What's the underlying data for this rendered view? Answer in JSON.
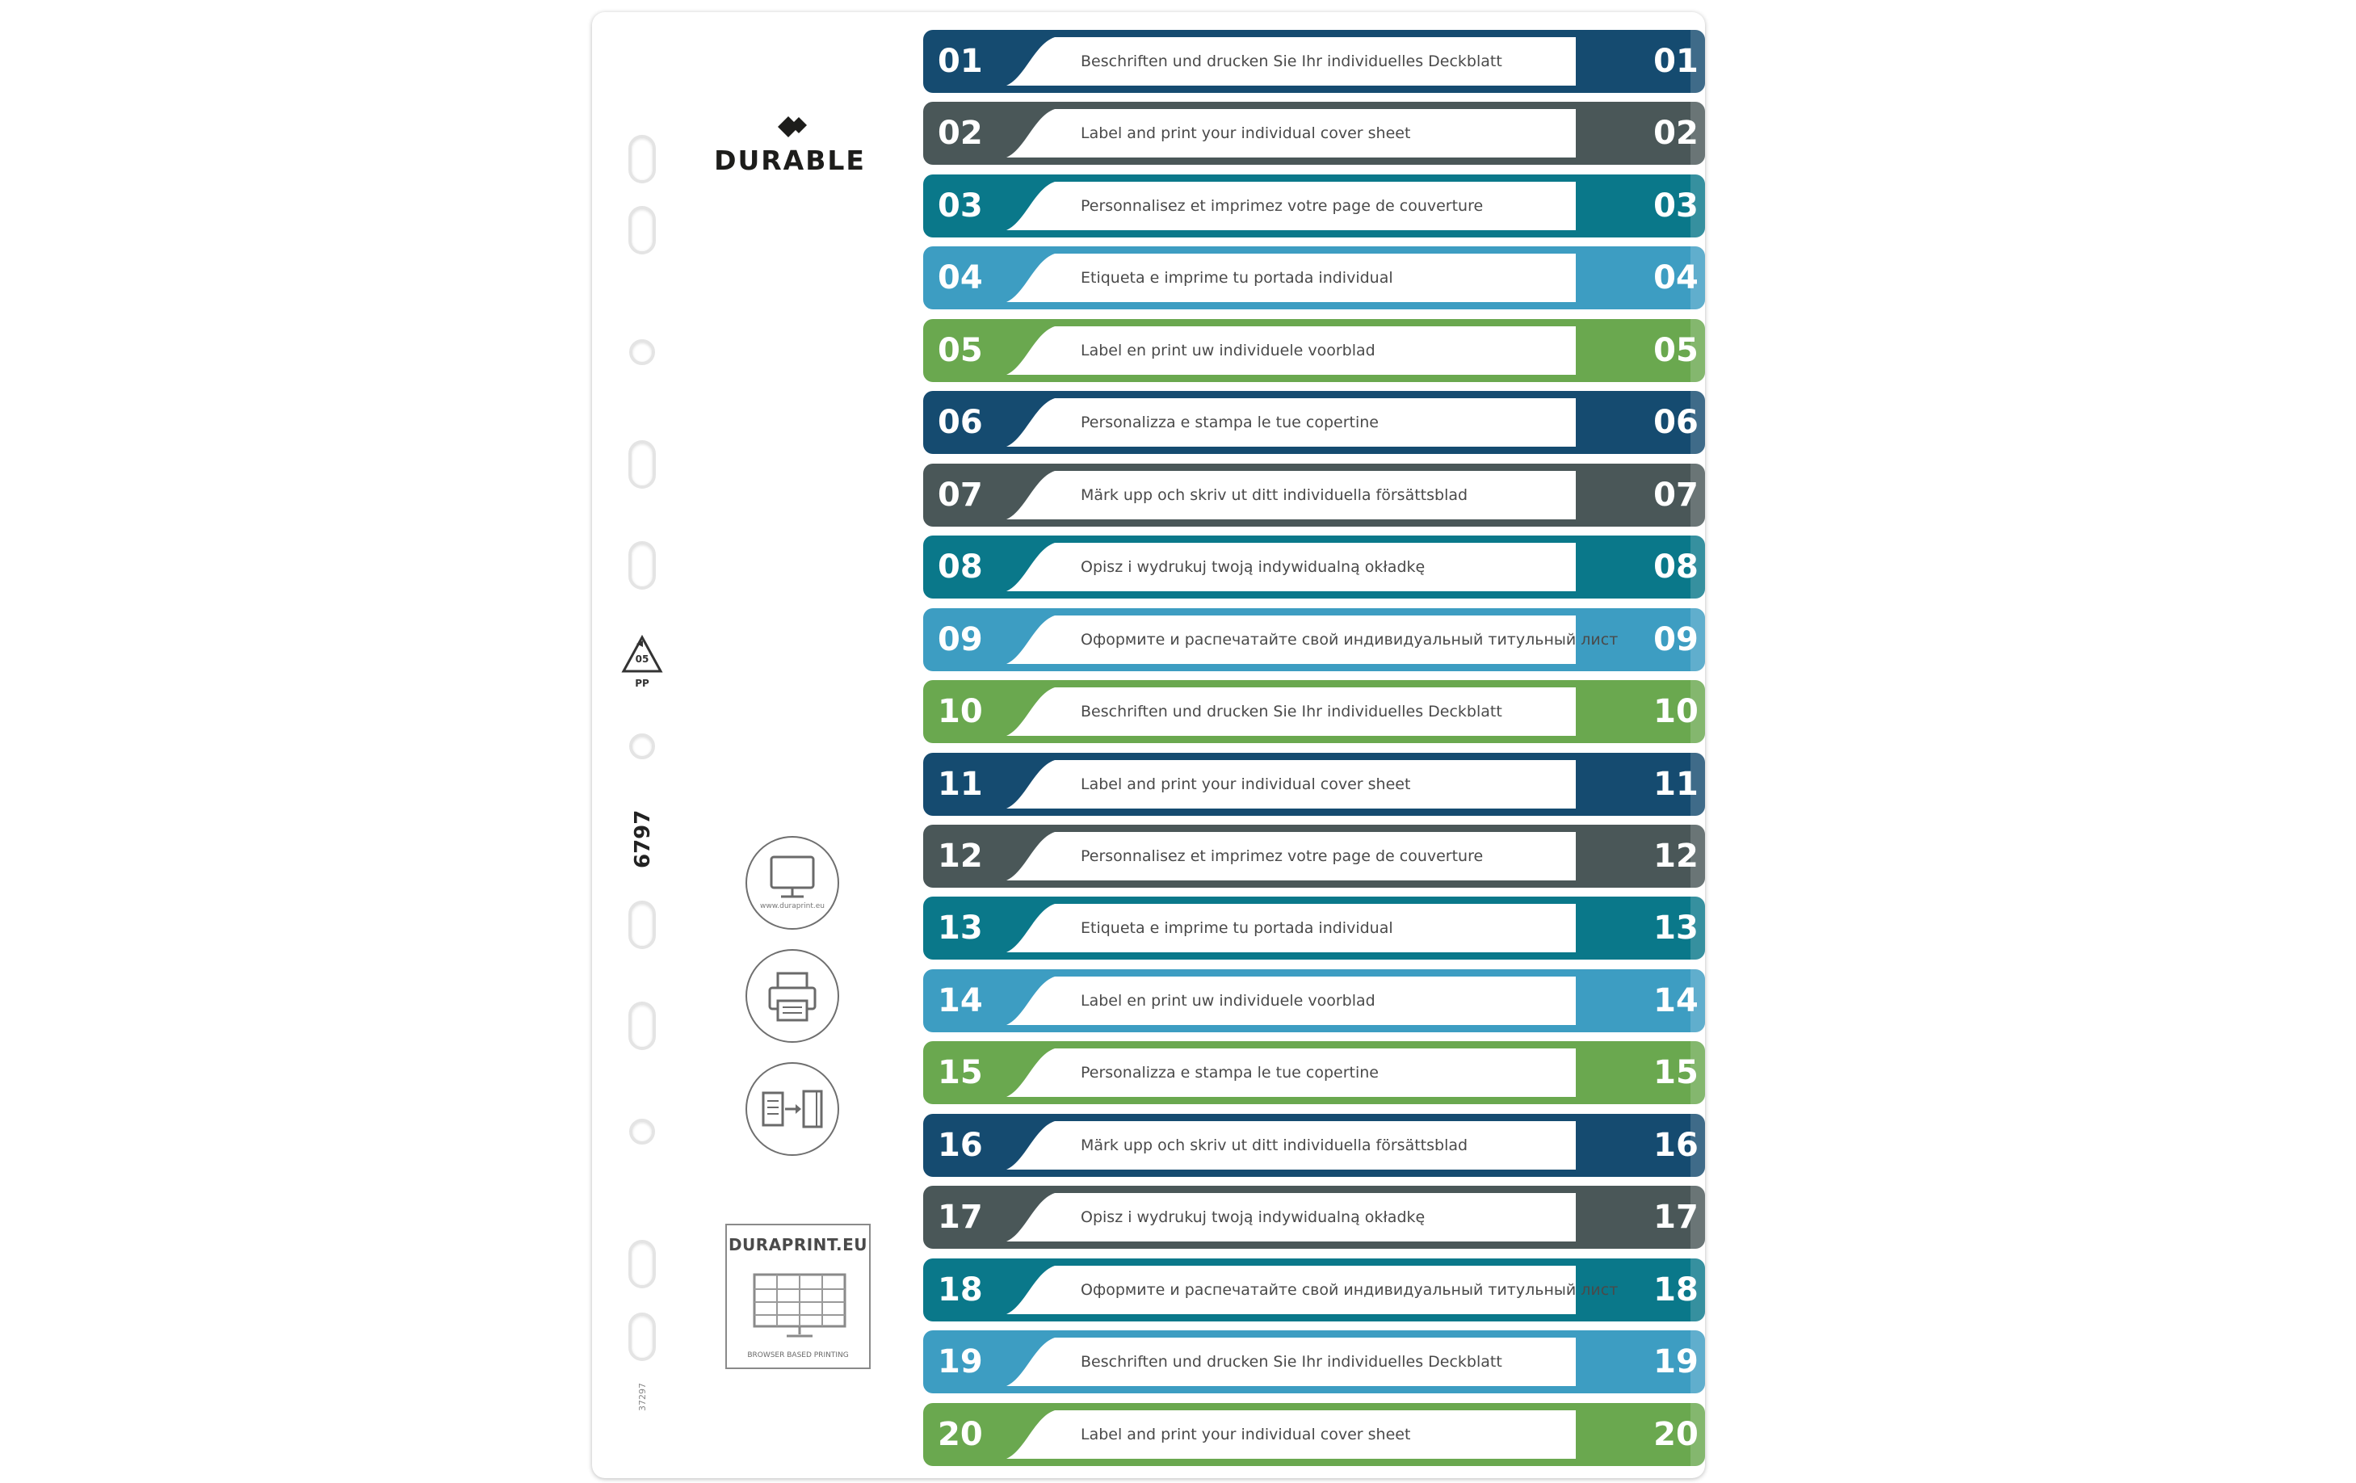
{
  "brand": {
    "name": "DURABLE"
  },
  "product_code": "6797",
  "small_code": "37297",
  "recycle": {
    "number": "05",
    "material": "PP"
  },
  "steps": {
    "url": "www.duraprint.eu"
  },
  "duraprint": {
    "title": "DURAPRINT.EU",
    "subtitle": "BROWSER BASED PRINTING"
  },
  "colors": {
    "dark_blue": "#154b70",
    "dark_grey": "#4a5758",
    "teal": "#0a788a",
    "light_blue": "#3d9dc2",
    "green": "#6aa84f"
  },
  "tabs": [
    {
      "number": "01",
      "label": "Beschriften und drucken Sie Ihr individuelles Deckblatt",
      "color": "#154b70"
    },
    {
      "number": "02",
      "label": "Label and print your individual cover sheet",
      "color": "#4a5758"
    },
    {
      "number": "03",
      "label": "Personnalisez et imprimez votre page de couverture",
      "color": "#0a788a"
    },
    {
      "number": "04",
      "label": "Etiqueta e imprime tu portada individual",
      "color": "#3d9dc2"
    },
    {
      "number": "05",
      "label": "Label en print uw individuele voorblad",
      "color": "#6aa84f"
    },
    {
      "number": "06",
      "label": "Personalizza e stampa le tue copertine",
      "color": "#154b70"
    },
    {
      "number": "07",
      "label": "Märk upp och skriv ut ditt individuella försättsblad",
      "color": "#4a5758"
    },
    {
      "number": "08",
      "label": "Opisz i wydrukuj twoją indywidualną okładkę",
      "color": "#0a788a"
    },
    {
      "number": "09",
      "label": "Оформите и распечатайте свой индивидуальный титульный лист",
      "color": "#3d9dc2"
    },
    {
      "number": "10",
      "label": "Beschriften und drucken Sie Ihr individuelles Deckblatt",
      "color": "#6aa84f"
    },
    {
      "number": "11",
      "label": "Label and print your individual cover sheet",
      "color": "#154b70"
    },
    {
      "number": "12",
      "label": "Personnalisez et imprimez votre page de couverture",
      "color": "#4a5758"
    },
    {
      "number": "13",
      "label": "Etiqueta e imprime tu portada individual",
      "color": "#0a788a"
    },
    {
      "number": "14",
      "label": "Label en print uw individuele voorblad",
      "color": "#3d9dc2"
    },
    {
      "number": "15",
      "label": "Personalizza e stampa le tue copertine",
      "color": "#6aa84f"
    },
    {
      "number": "16",
      "label": "Märk upp och skriv ut ditt individuella försättsblad",
      "color": "#154b70"
    },
    {
      "number": "17",
      "label": "Opisz i wydrukuj twoją indywidualną okładkę",
      "color": "#4a5758"
    },
    {
      "number": "18",
      "label": "Оформите и распечатайте свой индивидуальный титульный лист",
      "color": "#0a788a"
    },
    {
      "number": "19",
      "label": "Beschriften und drucken Sie Ihr individuelles Deckblatt",
      "color": "#3d9dc2"
    },
    {
      "number": "20",
      "label": "Label and print your individual cover sheet",
      "color": "#6aa84f"
    }
  ]
}
